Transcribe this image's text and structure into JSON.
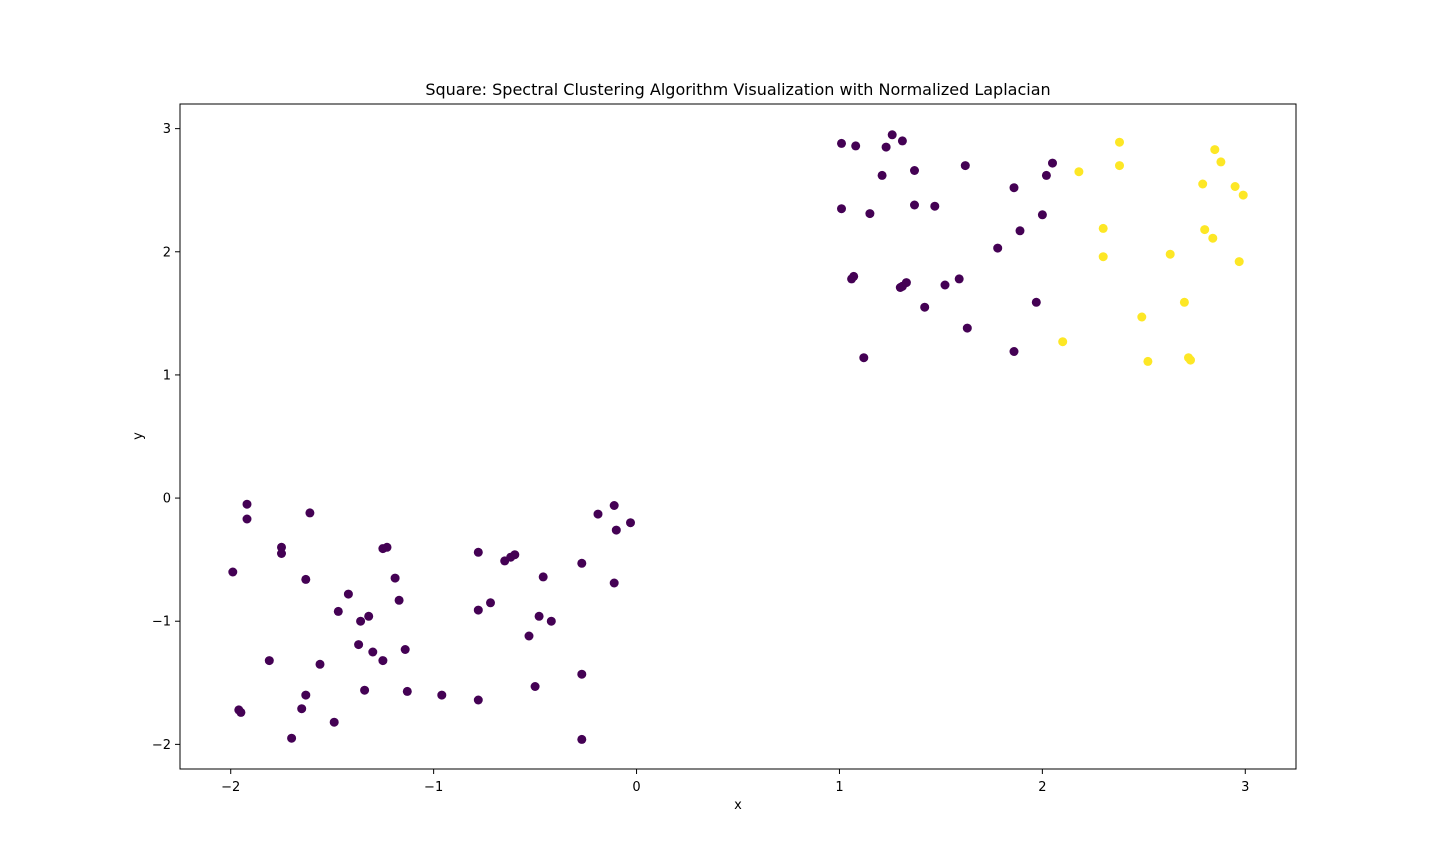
{
  "chart_data": {
    "type": "scatter",
    "title": "Square: Spectral Clustering Algorithm Visualization with Normalized Laplacian",
    "xlabel": "x",
    "ylabel": "y",
    "xlim": [
      -2.25,
      3.25
    ],
    "ylim": [
      -2.2,
      3.2
    ],
    "xticks": [
      -2,
      -1,
      0,
      1,
      2,
      3
    ],
    "yticks": [
      -2,
      -1,
      0,
      1,
      2,
      3
    ],
    "xtick_labels": [
      "−2",
      "−1",
      "0",
      "1",
      "2",
      "3"
    ],
    "ytick_labels": [
      "−2",
      "−1",
      "0",
      "1",
      "2",
      "3"
    ],
    "grid": false,
    "legend": "none",
    "colors": {
      "cluster_0": "#440154",
      "cluster_1": "#fde725"
    },
    "series": [
      {
        "color": "#440154",
        "points": [
          [
            -1.92,
            -0.05
          ],
          [
            -1.92,
            -0.17
          ],
          [
            -1.61,
            -0.12
          ],
          [
            -1.99,
            -0.6
          ],
          [
            -1.75,
            -0.4
          ],
          [
            -1.75,
            -0.45
          ],
          [
            -1.63,
            -0.66
          ],
          [
            -1.81,
            -1.32
          ],
          [
            -1.96,
            -1.72
          ],
          [
            -1.95,
            -1.74
          ],
          [
            -1.63,
            -1.6
          ],
          [
            -1.65,
            -1.71
          ],
          [
            -1.7,
            -1.95
          ],
          [
            -1.56,
            -1.35
          ],
          [
            -1.49,
            -1.82
          ],
          [
            -1.47,
            -0.92
          ],
          [
            -1.42,
            -0.78
          ],
          [
            -1.36,
            -1.0
          ],
          [
            -1.32,
            -0.96
          ],
          [
            -1.34,
            -1.56
          ],
          [
            -1.37,
            -1.19
          ],
          [
            -1.3,
            -1.25
          ],
          [
            -1.25,
            -1.32
          ],
          [
            -1.25,
            -0.41
          ],
          [
            -1.23,
            -0.4
          ],
          [
            -1.19,
            -0.65
          ],
          [
            -1.17,
            -0.83
          ],
          [
            -1.14,
            -1.23
          ],
          [
            -1.13,
            -1.57
          ],
          [
            -0.96,
            -1.6
          ],
          [
            -0.78,
            -0.44
          ],
          [
            -0.78,
            -0.91
          ],
          [
            -0.78,
            -1.64
          ],
          [
            -0.72,
            -0.85
          ],
          [
            -0.65,
            -0.51
          ],
          [
            -0.62,
            -0.48
          ],
          [
            -0.6,
            -0.46
          ],
          [
            -0.53,
            -1.12
          ],
          [
            -0.5,
            -1.53
          ],
          [
            -0.48,
            -0.96
          ],
          [
            -0.46,
            -0.64
          ],
          [
            -0.42,
            -1.0
          ],
          [
            -0.27,
            -0.53
          ],
          [
            -0.27,
            -1.43
          ],
          [
            -0.27,
            -1.96
          ],
          [
            -0.19,
            -0.13
          ],
          [
            -0.11,
            -0.06
          ],
          [
            -0.1,
            -0.26
          ],
          [
            -0.11,
            -0.69
          ],
          [
            -0.03,
            -0.2
          ],
          [
            1.01,
            2.88
          ],
          [
            1.08,
            2.86
          ],
          [
            1.26,
            2.95
          ],
          [
            1.31,
            2.9
          ],
          [
            1.23,
            2.85
          ],
          [
            1.01,
            2.35
          ],
          [
            1.21,
            2.62
          ],
          [
            1.37,
            2.66
          ],
          [
            1.15,
            2.31
          ],
          [
            1.37,
            2.38
          ],
          [
            1.47,
            2.37
          ],
          [
            1.62,
            2.7
          ],
          [
            1.06,
            1.78
          ],
          [
            1.07,
            1.8
          ],
          [
            1.3,
            1.71
          ],
          [
            1.31,
            1.72
          ],
          [
            1.33,
            1.75
          ],
          [
            1.12,
            1.14
          ],
          [
            1.42,
            1.55
          ],
          [
            1.52,
            1.73
          ],
          [
            1.59,
            1.78
          ],
          [
            1.63,
            1.38
          ],
          [
            1.78,
            2.03
          ],
          [
            1.86,
            2.52
          ],
          [
            1.89,
            2.17
          ],
          [
            1.86,
            1.19
          ],
          [
            1.97,
            1.59
          ],
          [
            2.0,
            2.3
          ],
          [
            2.02,
            2.62
          ],
          [
            2.05,
            2.72
          ]
        ]
      },
      {
        "color": "#fde725",
        "points": [
          [
            2.18,
            2.65
          ],
          [
            2.38,
            2.89
          ],
          [
            2.38,
            2.7
          ],
          [
            2.3,
            2.19
          ],
          [
            2.3,
            1.96
          ],
          [
            2.1,
            1.27
          ],
          [
            2.49,
            1.47
          ],
          [
            2.52,
            1.11
          ],
          [
            2.63,
            1.98
          ],
          [
            2.7,
            1.59
          ],
          [
            2.72,
            1.14
          ],
          [
            2.73,
            1.12
          ],
          [
            2.79,
            2.55
          ],
          [
            2.8,
            2.18
          ],
          [
            2.84,
            2.11
          ],
          [
            2.85,
            2.83
          ],
          [
            2.88,
            2.73
          ],
          [
            2.95,
            2.53
          ],
          [
            2.97,
            1.92
          ],
          [
            2.99,
            2.46
          ]
        ]
      }
    ]
  }
}
